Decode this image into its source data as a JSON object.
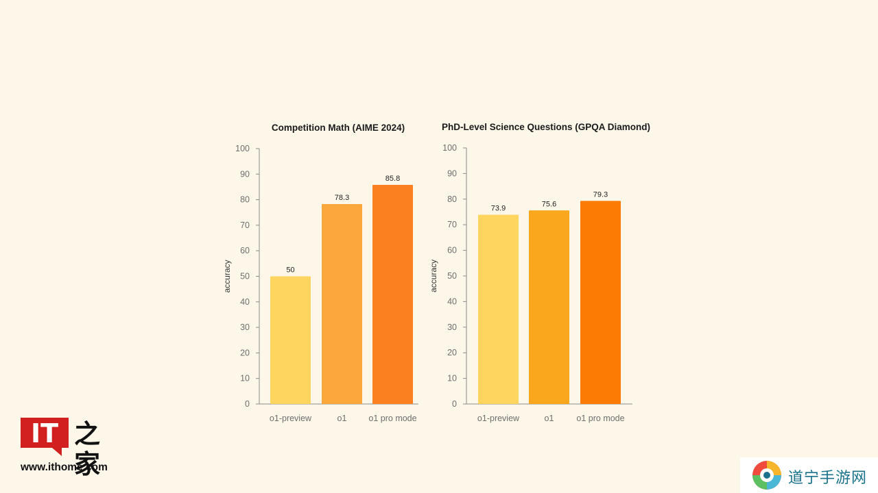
{
  "chart_data": [
    {
      "type": "bar",
      "title": "Competition Math (AIME 2024)",
      "ylabel": "accuracy",
      "xlabel": "",
      "categories": [
        "o1-preview",
        "o1",
        "o1 pro mode"
      ],
      "values": [
        50,
        78.3,
        85.8
      ],
      "value_labels": [
        "50",
        "78.3",
        "85.8"
      ],
      "colors": [
        "#fdd55f",
        "#fba73b",
        "#fb8120"
      ],
      "ylim": [
        0,
        100
      ],
      "yticks": [
        0,
        10,
        20,
        30,
        40,
        50,
        60,
        70,
        80,
        90,
        100
      ],
      "grid": false,
      "legend": "none"
    },
    {
      "type": "bar",
      "title": "PhD-Level Science Questions (GPQA Diamond)",
      "ylabel": "accuracy",
      "xlabel": "",
      "categories": [
        "o1-preview",
        "o1",
        "o1 pro mode"
      ],
      "values": [
        73.9,
        75.6,
        79.3
      ],
      "value_labels": [
        "73.9",
        "75.6",
        "79.3"
      ],
      "colors": [
        "#fdd55f",
        "#fba71d",
        "#fb7b05"
      ],
      "ylim": [
        0,
        100
      ],
      "yticks": [
        0,
        10,
        20,
        30,
        40,
        50,
        60,
        70,
        80,
        90,
        100
      ],
      "grid": false,
      "legend": "none"
    }
  ],
  "watermark_ithome": {
    "box_text": "IT",
    "glyph": "之家",
    "url": "www.ithome.com",
    "brand_color": "#d21f1f"
  },
  "watermark_daoning": {
    "text": "道宁手游网",
    "icon": "swirl-logo-icon",
    "text_color": "#19718a"
  }
}
